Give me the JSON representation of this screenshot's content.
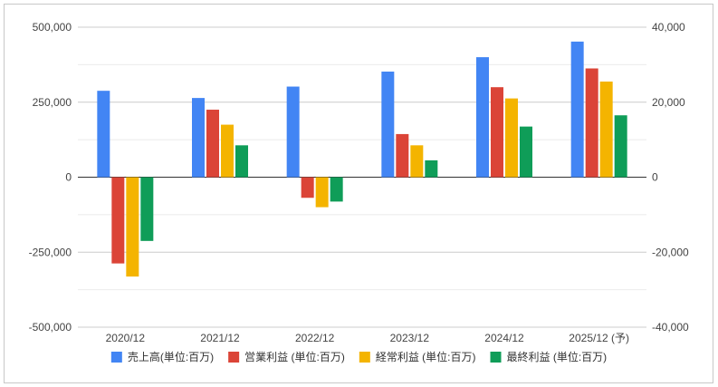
{
  "chart_data": {
    "type": "bar",
    "categories": [
      "2020/12",
      "2021/12",
      "2022/12",
      "2023/12",
      "2024/12",
      "2025/12 (予)"
    ],
    "series": [
      {
        "name": "売上高(単位:百万)",
        "axis": "left",
        "color": "#4285f4",
        "values": [
          288000,
          264000,
          302000,
          352000,
          400000,
          452000
        ]
      },
      {
        "name": "営業利益 (単位:百万)",
        "axis": "right",
        "color": "#db4437",
        "values": [
          -23000,
          18000,
          -5500,
          11500,
          24000,
          29000
        ]
      },
      {
        "name": "経常利益 (単位:百万)",
        "axis": "right",
        "color": "#f4b400",
        "values": [
          -26500,
          14000,
          -8000,
          8500,
          21000,
          25500
        ]
      },
      {
        "name": "最終利益 (単位:百万)",
        "axis": "right",
        "color": "#0f9d58",
        "values": [
          -17000,
          8500,
          -6500,
          4500,
          13500,
          16500
        ]
      }
    ],
    "left_axis": {
      "min": -500000,
      "max": 500000,
      "ticks": [
        "500,000",
        "250,000",
        "0",
        "-250,000",
        "-500,000"
      ],
      "tick_values": [
        500000,
        250000,
        0,
        -250000,
        -500000
      ]
    },
    "right_axis": {
      "min": -40000,
      "max": 40000,
      "ticks": [
        "40,000",
        "20,000",
        "0",
        "-20,000",
        "-40,000"
      ],
      "tick_values": [
        40000,
        20000,
        0,
        -20000,
        -40000
      ]
    },
    "minor_gridlines": true,
    "legend_position": "bottom",
    "title": "",
    "xlabel": "",
    "ylabel": ""
  }
}
